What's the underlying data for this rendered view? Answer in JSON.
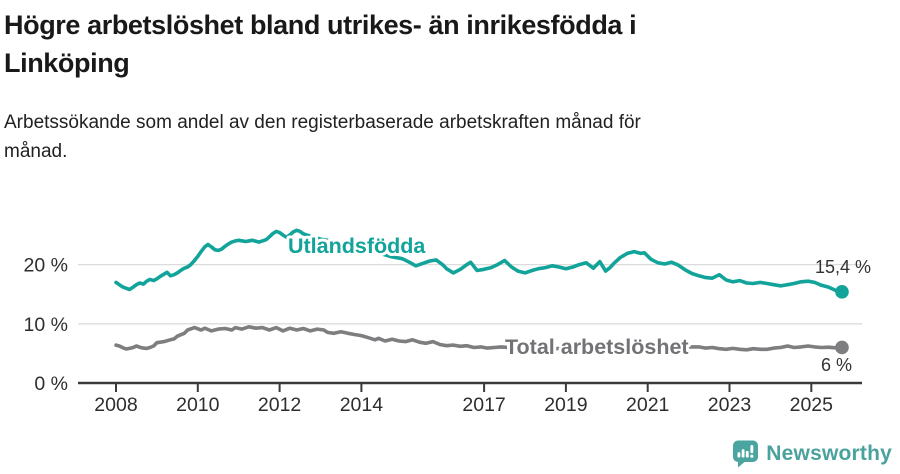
{
  "header": {
    "title_line1": "Högre arbetslöshet bland utrikes- än inrikesfödda i",
    "title_line2": "Linköping",
    "subtitle_line1": "Arbetssökande som andel av den registerbaserade arbetskraften månad för",
    "subtitle_line2": "månad."
  },
  "footer": {
    "brand": "Newsworthy"
  },
  "colors": {
    "teal": "#12a49a",
    "gray": "#7e7e81",
    "gray_label": "#737377",
    "axis": "#3a3a3a",
    "grid": "#dbdbdb",
    "value_label": "#333333",
    "brand_teal": "#4aa5a0"
  },
  "chart_data": {
    "type": "line",
    "title": "Högre arbetslöshet bland utrikes- än inrikesfödda i Linköping",
    "subtitle": "Arbetssökande som andel av den registerbaserade arbetskraften månad för månad.",
    "xlabel": "",
    "ylabel": "",
    "grid": "horizontal",
    "legend_position": "inline-labels",
    "x_axis": {
      "range": [
        2008,
        2025.75
      ],
      "tick_years": [
        2008,
        2010,
        2012,
        2014,
        2017,
        2019,
        2021,
        2023,
        2025
      ],
      "tick_labels": [
        "2008",
        "2010",
        "2012",
        "2014",
        "2017",
        "2019",
        "2021",
        "2023",
        "2025"
      ]
    },
    "y_axis": {
      "range": [
        0,
        27.5
      ],
      "tick_values": [
        0,
        10,
        20
      ],
      "tick_labels": [
        "0 %",
        "10 %",
        "20 %"
      ]
    },
    "series": [
      {
        "name": "Utlandsfödda",
        "end_label": "15,4 %",
        "end_value": 15.4,
        "points": [
          [
            2008.0,
            17.0
          ],
          [
            2008.08,
            16.6
          ],
          [
            2008.17,
            16.2
          ],
          [
            2008.33,
            15.8
          ],
          [
            2008.42,
            16.2
          ],
          [
            2008.5,
            16.6
          ],
          [
            2008.58,
            16.9
          ],
          [
            2008.67,
            16.7
          ],
          [
            2008.75,
            17.2
          ],
          [
            2008.83,
            17.5
          ],
          [
            2008.92,
            17.3
          ],
          [
            2009.0,
            17.6
          ],
          [
            2009.08,
            18.0
          ],
          [
            2009.25,
            18.7
          ],
          [
            2009.33,
            18.1
          ],
          [
            2009.42,
            18.3
          ],
          [
            2009.5,
            18.6
          ],
          [
            2009.58,
            19.0
          ],
          [
            2009.67,
            19.4
          ],
          [
            2009.75,
            19.6
          ],
          [
            2009.83,
            20.0
          ],
          [
            2009.92,
            20.7
          ],
          [
            2010.0,
            21.4
          ],
          [
            2010.08,
            22.2
          ],
          [
            2010.17,
            23.0
          ],
          [
            2010.25,
            23.4
          ],
          [
            2010.33,
            23.0
          ],
          [
            2010.42,
            22.5
          ],
          [
            2010.5,
            22.4
          ],
          [
            2010.58,
            22.6
          ],
          [
            2010.67,
            23.1
          ],
          [
            2010.75,
            23.5
          ],
          [
            2010.83,
            23.8
          ],
          [
            2010.92,
            24.0
          ],
          [
            2011.0,
            24.1
          ],
          [
            2011.17,
            23.9
          ],
          [
            2011.33,
            24.1
          ],
          [
            2011.5,
            23.8
          ],
          [
            2011.67,
            24.2
          ],
          [
            2011.75,
            24.7
          ],
          [
            2011.83,
            25.2
          ],
          [
            2011.92,
            25.6
          ],
          [
            2012.0,
            25.4
          ],
          [
            2012.08,
            25.0
          ],
          [
            2012.17,
            24.6
          ],
          [
            2012.25,
            25.0
          ],
          [
            2012.33,
            25.5
          ],
          [
            2012.42,
            25.8
          ],
          [
            2012.5,
            25.6
          ],
          [
            2012.58,
            25.2
          ],
          [
            2012.75,
            24.8
          ],
          [
            2013.0,
            24.3
          ],
          [
            2013.25,
            24.0
          ],
          [
            2013.5,
            23.5
          ],
          [
            2013.75,
            23.1
          ],
          [
            2014.0,
            22.7
          ],
          [
            2014.25,
            22.2
          ],
          [
            2014.5,
            21.8
          ],
          [
            2014.75,
            21.3
          ],
          [
            2015.0,
            21.0
          ],
          [
            2015.17,
            20.4
          ],
          [
            2015.33,
            19.8
          ],
          [
            2015.5,
            20.2
          ],
          [
            2015.67,
            20.6
          ],
          [
            2015.83,
            20.8
          ],
          [
            2016.0,
            19.9
          ],
          [
            2016.08,
            19.3
          ],
          [
            2016.25,
            18.6
          ],
          [
            2016.42,
            19.2
          ],
          [
            2016.58,
            20.0
          ],
          [
            2016.67,
            20.4
          ],
          [
            2016.83,
            19.0
          ],
          [
            2017.0,
            19.2
          ],
          [
            2017.17,
            19.5
          ],
          [
            2017.33,
            20.0
          ],
          [
            2017.5,
            20.7
          ],
          [
            2017.67,
            19.6
          ],
          [
            2017.83,
            18.9
          ],
          [
            2018.0,
            18.6
          ],
          [
            2018.17,
            19.0
          ],
          [
            2018.33,
            19.3
          ],
          [
            2018.5,
            19.5
          ],
          [
            2018.67,
            19.8
          ],
          [
            2018.83,
            19.6
          ],
          [
            2019.0,
            19.3
          ],
          [
            2019.17,
            19.6
          ],
          [
            2019.33,
            20.0
          ],
          [
            2019.5,
            20.3
          ],
          [
            2019.67,
            19.4
          ],
          [
            2019.83,
            20.5
          ],
          [
            2019.97,
            18.9
          ],
          [
            2020.08,
            19.5
          ],
          [
            2020.17,
            20.2
          ],
          [
            2020.33,
            21.2
          ],
          [
            2020.5,
            21.9
          ],
          [
            2020.67,
            22.2
          ],
          [
            2020.83,
            21.9
          ],
          [
            2020.92,
            22.0
          ],
          [
            2021.08,
            20.9
          ],
          [
            2021.25,
            20.3
          ],
          [
            2021.42,
            20.1
          ],
          [
            2021.58,
            20.4
          ],
          [
            2021.75,
            19.9
          ],
          [
            2021.92,
            19.1
          ],
          [
            2022.08,
            18.5
          ],
          [
            2022.25,
            18.1
          ],
          [
            2022.42,
            17.8
          ],
          [
            2022.58,
            17.7
          ],
          [
            2022.75,
            18.3
          ],
          [
            2022.92,
            17.4
          ],
          [
            2023.08,
            17.1
          ],
          [
            2023.25,
            17.3
          ],
          [
            2023.42,
            16.9
          ],
          [
            2023.58,
            16.8
          ],
          [
            2023.75,
            17.0
          ],
          [
            2023.92,
            16.8
          ],
          [
            2024.08,
            16.6
          ],
          [
            2024.25,
            16.4
          ],
          [
            2024.42,
            16.6
          ],
          [
            2024.58,
            16.8
          ],
          [
            2024.75,
            17.1
          ],
          [
            2024.92,
            17.2
          ],
          [
            2025.08,
            17.0
          ],
          [
            2025.25,
            16.5
          ],
          [
            2025.42,
            16.2
          ],
          [
            2025.58,
            15.7
          ],
          [
            2025.75,
            15.4
          ]
        ]
      },
      {
        "name": "Total arbetslöshet",
        "end_label": "6 %",
        "end_value": 6.0,
        "points": [
          [
            2008.0,
            6.4
          ],
          [
            2008.08,
            6.25
          ],
          [
            2008.17,
            5.95
          ],
          [
            2008.25,
            5.75
          ],
          [
            2008.33,
            5.85
          ],
          [
            2008.42,
            6.0
          ],
          [
            2008.5,
            6.25
          ],
          [
            2008.58,
            6.05
          ],
          [
            2008.67,
            5.9
          ],
          [
            2008.75,
            5.85
          ],
          [
            2008.83,
            6.0
          ],
          [
            2008.92,
            6.25
          ],
          [
            2009.0,
            6.8
          ],
          [
            2009.17,
            7.0
          ],
          [
            2009.33,
            7.3
          ],
          [
            2009.42,
            7.45
          ],
          [
            2009.5,
            7.9
          ],
          [
            2009.67,
            8.4
          ],
          [
            2009.75,
            8.95
          ],
          [
            2009.92,
            9.35
          ],
          [
            2010.08,
            8.95
          ],
          [
            2010.17,
            9.25
          ],
          [
            2010.33,
            8.8
          ],
          [
            2010.5,
            9.1
          ],
          [
            2010.67,
            9.2
          ],
          [
            2010.83,
            8.95
          ],
          [
            2010.92,
            9.35
          ],
          [
            2011.08,
            9.1
          ],
          [
            2011.25,
            9.5
          ],
          [
            2011.42,
            9.25
          ],
          [
            2011.58,
            9.35
          ],
          [
            2011.75,
            8.95
          ],
          [
            2011.92,
            9.35
          ],
          [
            2012.08,
            8.8
          ],
          [
            2012.25,
            9.25
          ],
          [
            2012.42,
            8.95
          ],
          [
            2012.58,
            9.2
          ],
          [
            2012.75,
            8.8
          ],
          [
            2012.92,
            9.1
          ],
          [
            2013.08,
            8.95
          ],
          [
            2013.17,
            8.55
          ],
          [
            2013.33,
            8.4
          ],
          [
            2013.5,
            8.65
          ],
          [
            2013.67,
            8.4
          ],
          [
            2013.83,
            8.2
          ],
          [
            2014.0,
            8.0
          ],
          [
            2014.17,
            7.65
          ],
          [
            2014.33,
            7.3
          ],
          [
            2014.42,
            7.55
          ],
          [
            2014.58,
            7.1
          ],
          [
            2014.75,
            7.4
          ],
          [
            2014.92,
            7.1
          ],
          [
            2015.08,
            7.0
          ],
          [
            2015.25,
            7.3
          ],
          [
            2015.42,
            6.9
          ],
          [
            2015.58,
            6.7
          ],
          [
            2015.75,
            7.0
          ],
          [
            2015.92,
            6.5
          ],
          [
            2016.08,
            6.3
          ],
          [
            2016.25,
            6.4
          ],
          [
            2016.42,
            6.2
          ],
          [
            2016.58,
            6.3
          ],
          [
            2016.75,
            6.0
          ],
          [
            2016.92,
            6.1
          ],
          [
            2017.08,
            5.9
          ],
          [
            2017.25,
            6.0
          ],
          [
            2017.42,
            6.1
          ],
          [
            2017.58,
            6.0
          ],
          [
            2017.75,
            5.9
          ],
          [
            2018.0,
            5.8
          ],
          [
            2018.25,
            5.9
          ],
          [
            2018.5,
            5.7
          ],
          [
            2018.75,
            5.8
          ],
          [
            2019.0,
            5.9
          ],
          [
            2019.25,
            6.0
          ],
          [
            2019.5,
            6.1
          ],
          [
            2019.75,
            6.2
          ],
          [
            2020.0,
            6.3
          ],
          [
            2020.25,
            6.6
          ],
          [
            2020.5,
            6.8
          ],
          [
            2020.75,
            6.7
          ],
          [
            2021.0,
            6.6
          ],
          [
            2021.25,
            6.5
          ],
          [
            2021.5,
            6.3
          ],
          [
            2021.75,
            6.2
          ],
          [
            2022.0,
            6.1
          ],
          [
            2022.25,
            6.1
          ],
          [
            2022.42,
            5.9
          ],
          [
            2022.58,
            6.0
          ],
          [
            2022.75,
            5.8
          ],
          [
            2022.92,
            5.7
          ],
          [
            2023.08,
            5.85
          ],
          [
            2023.25,
            5.7
          ],
          [
            2023.42,
            5.6
          ],
          [
            2023.58,
            5.8
          ],
          [
            2023.75,
            5.7
          ],
          [
            2023.92,
            5.7
          ],
          [
            2024.08,
            5.9
          ],
          [
            2024.25,
            6.0
          ],
          [
            2024.42,
            6.25
          ],
          [
            2024.58,
            6.0
          ],
          [
            2024.75,
            6.1
          ],
          [
            2024.92,
            6.25
          ],
          [
            2025.08,
            6.1
          ],
          [
            2025.25,
            6.0
          ],
          [
            2025.42,
            6.05
          ],
          [
            2025.58,
            5.95
          ],
          [
            2025.75,
            6.0
          ]
        ]
      }
    ]
  }
}
